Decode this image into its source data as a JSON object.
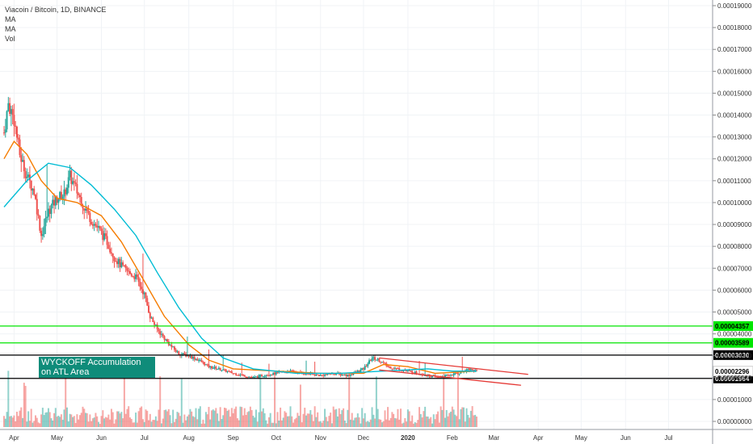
{
  "legend": {
    "title": "Viacoin / Bitcoin, 1D, BINANCE",
    "items": [
      "MA",
      "MA",
      "Vol"
    ]
  },
  "annotation": "WYCKOFF Accumulation on ATL Area",
  "colors": {
    "up": "#26a69a",
    "down": "#ef5350",
    "ma_fast": "#f57c00",
    "ma_slow": "#00bcd4",
    "support": "#00e600",
    "channel": "#e53935",
    "level": "#000000"
  },
  "chart_data": {
    "type": "candlestick",
    "title": "Viacoin / Bitcoin, 1D, BINANCE",
    "xlabels": [
      "Apr",
      "May",
      "Jun",
      "Jul",
      "Aug",
      "Sep",
      "Oct",
      "Nov",
      "Dec",
      "2020",
      "Mar",
      "Apr",
      "May",
      "Jun",
      "Jul"
    ],
    "x_range": [
      "2019-03-25",
      "2020-07-25"
    ],
    "ylim": [
      0,
      0.00019
    ],
    "yticks": [
      0.00019,
      0.00018,
      0.00017,
      0.00016,
      0.00015,
      0.00014,
      0.00013,
      0.00012,
      0.00011,
      0.0001,
      9e-05,
      8e-05,
      7e-05,
      6e-05,
      5e-05,
      4e-05,
      3e-05,
      2e-05,
      1e-05,
      0.0
    ],
    "ytick_labels": [
      "0.00019000",
      "0.00018000",
      "0.00017000",
      "0.00016000",
      "0.00015000",
      "0.00014000",
      "0.00013000",
      "0.00012000",
      "0.00011000",
      "0.00010000",
      "0.00009000",
      "0.00008000",
      "0.00007000",
      "0.00006000",
      "0.00005000",
      "0.00004000",
      "0.00003000",
      "0.00002000",
      "0.00001000",
      "0.00000000"
    ],
    "price_path": [
      [
        "2019-03-25",
        0.000132
      ],
      [
        "2019-03-28",
        0.000145
      ],
      [
        "2019-04-01",
        0.000138
      ],
      [
        "2019-04-05",
        0.000122
      ],
      [
        "2019-04-10",
        0.000112
      ],
      [
        "2019-04-15",
        0.000105
      ],
      [
        "2019-04-20",
        8.5e-05
      ],
      [
        "2019-04-25",
        9.6e-05
      ],
      [
        "2019-05-01",
        0.000102
      ],
      [
        "2019-05-06",
        0.000104
      ],
      [
        "2019-05-10",
        0.000112
      ],
      [
        "2019-05-15",
        0.000105
      ],
      [
        "2019-05-20",
        9.8e-05
      ],
      [
        "2019-05-25",
        9.2e-05
      ],
      [
        "2019-05-30",
        8.8e-05
      ],
      [
        "2019-06-05",
        8.2e-05
      ],
      [
        "2019-06-10",
        7.5e-05
      ],
      [
        "2019-06-15",
        7.1e-05
      ],
      [
        "2019-06-20",
        6.8e-05
      ],
      [
        "2019-06-25",
        6.6e-05
      ],
      [
        "2019-07-01",
        5.8e-05
      ],
      [
        "2019-07-05",
        4.8e-05
      ],
      [
        "2019-07-10",
        4.2e-05
      ],
      [
        "2019-07-15",
        3.8e-05
      ],
      [
        "2019-07-20",
        3.4e-05
      ],
      [
        "2019-07-25",
        3.1e-05
      ],
      [
        "2019-08-01",
        3e-05
      ],
      [
        "2019-08-08",
        2.8e-05
      ],
      [
        "2019-08-15",
        2.5e-05
      ],
      [
        "2019-08-22",
        2.4e-05
      ],
      [
        "2019-09-01",
        2.2e-05
      ],
      [
        "2019-09-08",
        2.1e-05
      ],
      [
        "2019-09-15",
        2e-05
      ],
      [
        "2019-09-22",
        2.1e-05
      ],
      [
        "2019-10-01",
        2.2e-05
      ],
      [
        "2019-10-10",
        2.3e-05
      ],
      [
        "2019-10-20",
        2.2e-05
      ],
      [
        "2019-11-01",
        2.1e-05
      ],
      [
        "2019-11-10",
        2.2e-05
      ],
      [
        "2019-11-20",
        2.1e-05
      ],
      [
        "2019-12-01",
        2.4e-05
      ],
      [
        "2019-12-07",
        2.9e-05
      ],
      [
        "2019-12-12",
        2.8e-05
      ],
      [
        "2019-12-18",
        2.5e-05
      ],
      [
        "2019-12-25",
        2.4e-05
      ],
      [
        "2020-01-01",
        2.3e-05
      ],
      [
        "2020-01-08",
        2.2e-05
      ],
      [
        "2020-01-15",
        2.1e-05
      ],
      [
        "2020-01-22",
        2e-05
      ],
      [
        "2020-01-29",
        2.1e-05
      ],
      [
        "2020-02-05",
        2.2e-05
      ],
      [
        "2020-02-12",
        2.4e-05
      ],
      [
        "2020-02-18",
        2.3e-05
      ]
    ],
    "moving_averages": [
      {
        "name": "MA",
        "color": "#f57c00",
        "points": [
          [
            "2019-03-25",
            0.00012
          ],
          [
            "2019-04-01",
            0.000128
          ],
          [
            "2019-04-10",
            0.000122
          ],
          [
            "2019-04-20",
            0.00011
          ],
          [
            "2019-05-01",
            0.000102
          ],
          [
            "2019-05-15",
            0.0001
          ],
          [
            "2019-06-01",
            9.4e-05
          ],
          [
            "2019-06-15",
            8.2e-05
          ],
          [
            "2019-07-01",
            6.4e-05
          ],
          [
            "2019-07-15",
            4.8e-05
          ],
          [
            "2019-08-01",
            3.5e-05
          ],
          [
            "2019-08-15",
            2.8e-05
          ],
          [
            "2019-09-01",
            2.4e-05
          ],
          [
            "2019-10-01",
            2.3e-05
          ],
          [
            "2019-11-01",
            2.2e-05
          ],
          [
            "2019-12-01",
            2.2e-05
          ],
          [
            "2019-12-15",
            2.6e-05
          ],
          [
            "2020-01-01",
            2.5e-05
          ],
          [
            "2020-01-20",
            2.2e-05
          ],
          [
            "2020-02-18",
            2.3e-05
          ]
        ]
      },
      {
        "name": "MA",
        "color": "#00bcd4",
        "points": [
          [
            "2019-03-25",
            9.8e-05
          ],
          [
            "2019-04-10",
            0.00011
          ],
          [
            "2019-04-25",
            0.000118
          ],
          [
            "2019-05-10",
            0.000116
          ],
          [
            "2019-05-25",
            0.000108
          ],
          [
            "2019-06-10",
            9.7e-05
          ],
          [
            "2019-06-25",
            8.5e-05
          ],
          [
            "2019-07-10",
            6.8e-05
          ],
          [
            "2019-07-25",
            5.2e-05
          ],
          [
            "2019-08-10",
            3.8e-05
          ],
          [
            "2019-08-25",
            2.9e-05
          ],
          [
            "2019-09-15",
            2.4e-05
          ],
          [
            "2019-10-15",
            2.2e-05
          ],
          [
            "2019-11-15",
            2.2e-05
          ],
          [
            "2019-12-15",
            2.3e-05
          ],
          [
            "2020-01-15",
            2.4e-05
          ],
          [
            "2020-02-01",
            2.3e-05
          ],
          [
            "2020-02-18",
            2.3e-05
          ]
        ]
      }
    ],
    "horizontal_levels": [
      {
        "value": 4.357e-05,
        "label": "0.00004357",
        "color": "#00e600"
      },
      {
        "value": 3.589e-05,
        "label": "0.00003589",
        "color": "#00e600"
      },
      {
        "value": 3.03e-05,
        "label": "0.00003030",
        "color": "#000000"
      },
      {
        "value": 1.964e-05,
        "label": "0.00001964",
        "color": "#000000"
      }
    ],
    "trendlines": [
      {
        "from": [
          "2019-12-12",
          2.9e-05
        ],
        "to": [
          "2020-03-25",
          2.15e-05
        ],
        "color": "#e53935"
      },
      {
        "from": [
          "2019-12-12",
          2.35e-05
        ],
        "to": [
          "2020-03-20",
          1.65e-05
        ],
        "color": "#e53935"
      }
    ],
    "last_price": {
      "value": 2.296e-05,
      "label": "0.00002296"
    }
  }
}
